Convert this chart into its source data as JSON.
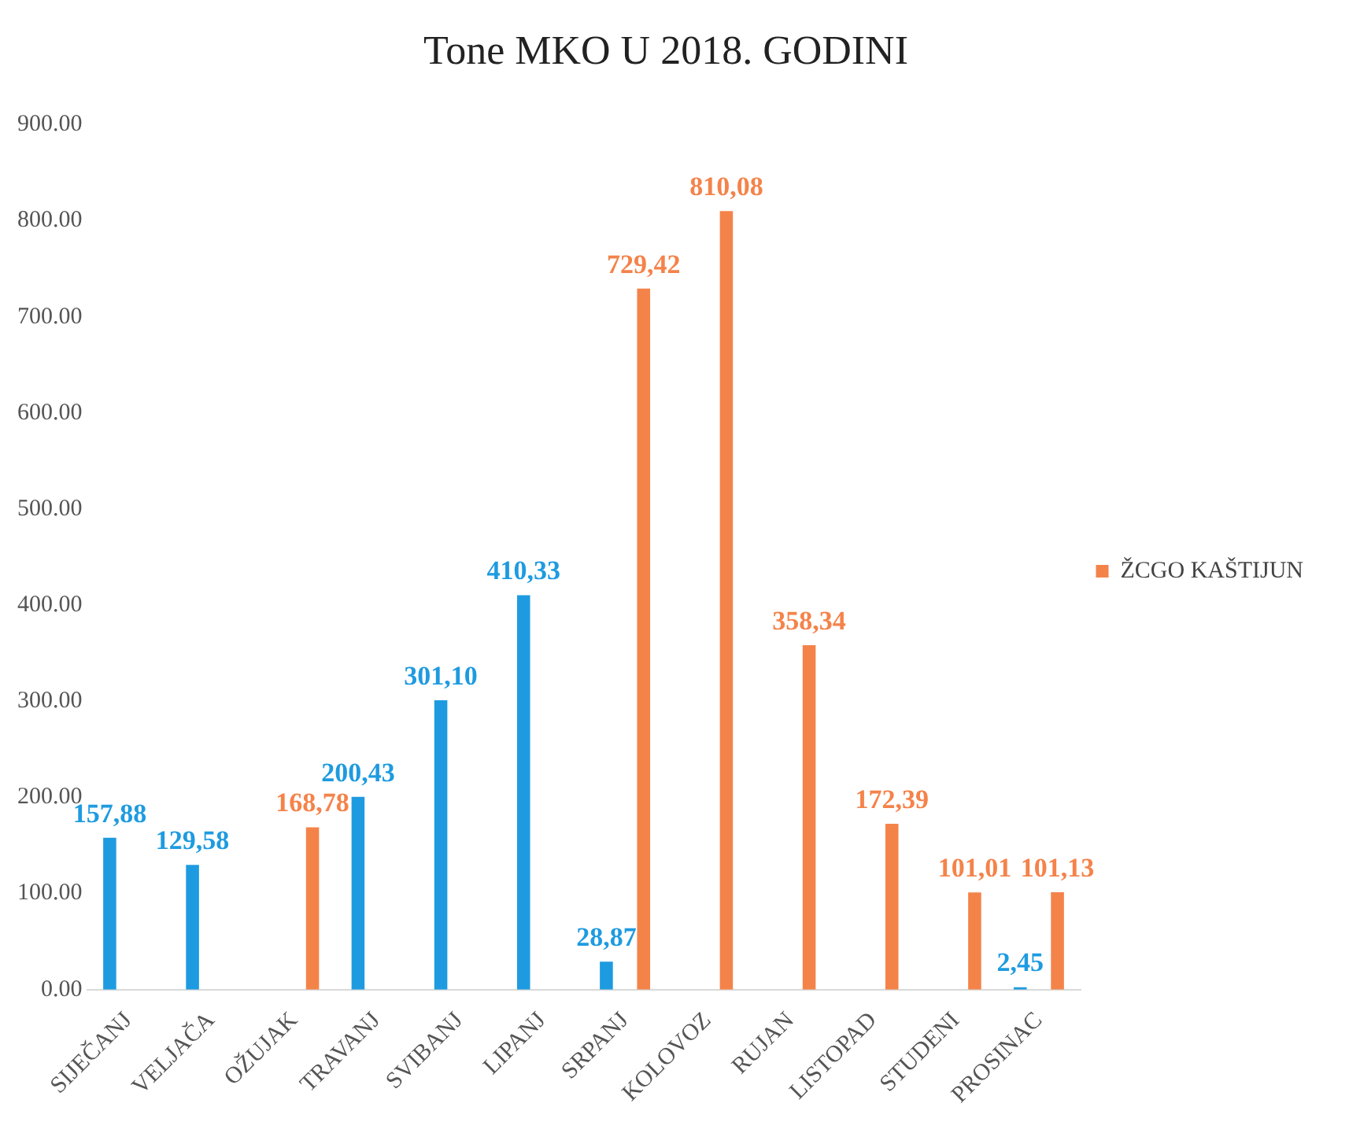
{
  "chart_data": {
    "type": "bar",
    "title": "Tone MKO U 2018. GODINI",
    "categories": [
      "SIJEČANJ",
      "VELJAČA",
      "OŽUJAK",
      "TRAVANJ",
      "SVIBANJ",
      "LIPANJ",
      "SRPANJ",
      "KOLOVOZ",
      "RUJAN",
      "LISTOPAD",
      "STUDENI",
      "PROSINAC"
    ],
    "series": [
      {
        "color": "#1e9be0",
        "values": [
          157.88,
          129.58,
          null,
          200.43,
          301.1,
          410.33,
          28.87,
          null,
          null,
          null,
          null,
          2.45
        ],
        "value_labels": [
          "157,88",
          "129,58",
          null,
          "200,43",
          "301,10",
          "410,33",
          "28,87",
          null,
          null,
          null,
          null,
          "2,45"
        ]
      },
      {
        "name": "ŽCGO KAŠTIJUN",
        "color": "#f4834a",
        "values": [
          null,
          null,
          168.78,
          null,
          null,
          null,
          729.42,
          810.08,
          358.34,
          172.39,
          101.01,
          101.13
        ],
        "value_labels": [
          null,
          null,
          "168,78",
          null,
          null,
          null,
          "729,42",
          "810,08",
          "358,34",
          "172,39",
          "101,01",
          "101,13"
        ]
      }
    ],
    "ylim": [
      0,
      900
    ],
    "yticks": [
      {
        "value": 0,
        "label": "0.00"
      },
      {
        "value": 100,
        "label": "100.00"
      },
      {
        "value": 200,
        "label": "200.00"
      },
      {
        "value": 300,
        "label": "300.00"
      },
      {
        "value": 400,
        "label": "400.00"
      },
      {
        "value": 500,
        "label": "500.00"
      },
      {
        "value": 600,
        "label": "600.00"
      },
      {
        "value": 700,
        "label": "700.00"
      },
      {
        "value": 800,
        "label": "800.00"
      },
      {
        "value": 900,
        "label": "900.00"
      }
    ],
    "legend": "right"
  }
}
